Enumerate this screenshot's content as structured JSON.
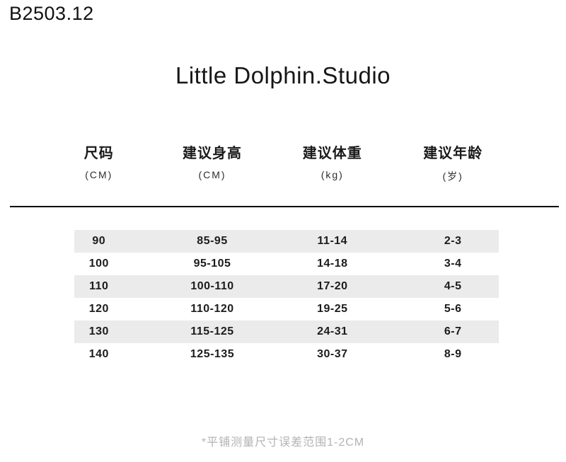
{
  "product_code": "B2503.12",
  "brand_title": "Little Dolphin.Studio",
  "size_chart": {
    "columns": [
      {
        "label": "尺码",
        "unit": "(CM)"
      },
      {
        "label": "建议身高",
        "unit": "(CM)"
      },
      {
        "label": "建议体重",
        "unit": "(kg)"
      },
      {
        "label": "建议年龄",
        "unit": "(岁)"
      }
    ],
    "rows": [
      [
        "90",
        "85-95",
        "11-14",
        "2-3"
      ],
      [
        "100",
        "95-105",
        "14-18",
        "3-4"
      ],
      [
        "110",
        "100-110",
        "17-20",
        "4-5"
      ],
      [
        "120",
        "110-120",
        "19-25",
        "5-6"
      ],
      [
        "130",
        "115-125",
        "24-31",
        "6-7"
      ],
      [
        "140",
        "125-135",
        "30-37",
        "8-9"
      ]
    ]
  },
  "footnote": "*平铺测量尺寸误差范围1-2CM",
  "colors": {
    "background": "#ffffff",
    "text": "#1a1a1a",
    "stripe": "#ebebeb",
    "divider": "#000000",
    "footnote": "#b3b3b3"
  }
}
